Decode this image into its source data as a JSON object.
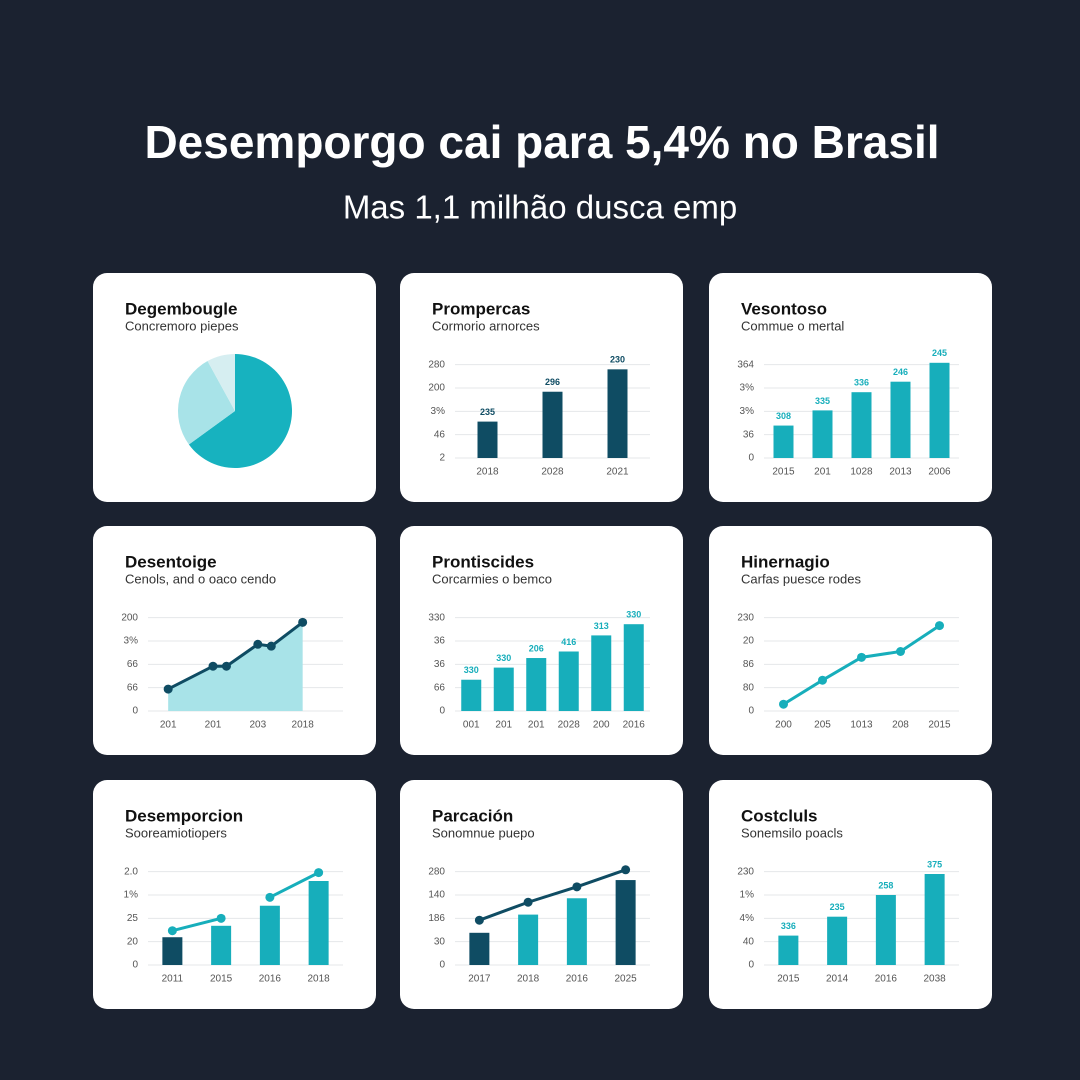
{
  "header": {
    "title": "Desemporgo cai para 5,4% no Brasil",
    "subtitle": "Mas 1,1 milhão dusca emp"
  },
  "chart_data": [
    {
      "type": "pie",
      "title": "Degembougle",
      "subtitle": "Concremoro piepes",
      "values": [
        65,
        27,
        8
      ],
      "colors": [
        "#17b2bf",
        "#a8e3e8",
        "#d6eef1"
      ]
    },
    {
      "type": "bar",
      "title": "Prompercas",
      "subtitle": "Cormorio arnorces",
      "categories": [
        "2018",
        "2028",
        "2021"
      ],
      "series": [
        {
          "kind": "bar",
          "color": "#0f4c63",
          "values": [
            1.56,
            2.84,
            3.8
          ]
        }
      ],
      "annotations": [
        "235",
        "296",
        "230"
      ],
      "ylim": [
        0,
        4.2
      ],
      "yticks": [
        {
          "value": 0,
          "label": "2"
        },
        {
          "value": 1,
          "label": "46"
        },
        {
          "value": 2,
          "label": "3%"
        },
        {
          "value": 3,
          "label": "200"
        },
        {
          "value": 4,
          "label": "280"
        }
      ],
      "grid": true
    },
    {
      "type": "bar",
      "title": "Vesontoso",
      "subtitle": "Commue o mertal",
      "categories": [
        "2015",
        "201",
        "1028",
        "2013",
        "2006"
      ],
      "series": [
        {
          "kind": "bar",
          "color": "#17aebb",
          "values": [
            1.39,
            2.04,
            2.82,
            3.27,
            4.08
          ]
        }
      ],
      "annotations": [
        "308",
        "335",
        "336",
        "246",
        "245"
      ],
      "ylim": [
        0,
        4.2
      ],
      "yticks": [
        0,
        {
          "value": 1,
          "label": "36"
        },
        {
          "value": 2,
          "label": "3%"
        },
        {
          "value": 3,
          "label": "3%"
        },
        {
          "value": 4,
          "label": "364"
        }
      ],
      "grid": true
    },
    {
      "type": "line",
      "title": "Desentoige",
      "subtitle": "Cenols, and o oaco cendo",
      "x": [
        0,
        1,
        1.3,
        2,
        2.3,
        3
      ],
      "series": [
        {
          "kind": "line",
          "area": true,
          "color": "#0f4c63",
          "fill": "#a8e3e8",
          "values": [
            0.94,
            1.92,
            1.92,
            2.86,
            2.78,
            3.8
          ]
        }
      ],
      "xlim": [
        -0.45,
        3.9
      ],
      "xticks": [
        {
          "value": 0,
          "label": "201"
        },
        {
          "value": 1,
          "label": "201"
        },
        {
          "value": 2,
          "label": "203"
        },
        {
          "value": 3,
          "label": "2018"
        }
      ],
      "ylim": [
        0,
        4.2
      ],
      "yticks": [
        0,
        {
          "value": 1,
          "label": "66"
        },
        {
          "value": 2,
          "label": "66"
        },
        {
          "value": 3,
          "label": "3%"
        },
        {
          "value": 4,
          "label": "200"
        }
      ],
      "grid": true
    },
    {
      "type": "bar",
      "title": "Prontiscides",
      "subtitle": "Corcarmies o bemco",
      "categories": [
        "001",
        "201",
        "201",
        "2028",
        "200",
        "2016"
      ],
      "series": [
        {
          "kind": "bar",
          "color": "#17aebb",
          "values": [
            1.34,
            1.86,
            2.27,
            2.55,
            3.24,
            3.72
          ]
        }
      ],
      "annotations": [
        "330",
        "330",
        "206",
        "416",
        "313",
        "330"
      ],
      "ylim": [
        0,
        4.2
      ],
      "yticks": [
        0,
        {
          "value": 1,
          "label": "66"
        },
        {
          "value": 2,
          "label": "36"
        },
        {
          "value": 3,
          "label": "36"
        },
        {
          "value": 4,
          "label": "330"
        }
      ],
      "grid": true
    },
    {
      "type": "line",
      "title": "Hinernagio",
      "subtitle": "Carfas puesce rodes",
      "categories": [
        "200",
        "205",
        "1013",
        "208",
        "2015"
      ],
      "series": [
        {
          "kind": "line",
          "color": "#17aebb",
          "values": [
            0.29,
            1.32,
            2.3,
            2.55,
            3.66
          ]
        }
      ],
      "ylim": [
        0,
        4.2
      ],
      "yticks": [
        0,
        {
          "value": 1,
          "label": "80"
        },
        {
          "value": 2,
          "label": "86"
        },
        {
          "value": 3,
          "label": "20"
        },
        {
          "value": 4,
          "label": "230"
        }
      ],
      "grid": true
    },
    {
      "type": "combo",
      "title": "Desemporcion",
      "subtitle": "Sooreamiotiopers",
      "categories": [
        "2011",
        "2015",
        "2016",
        "2018"
      ],
      "series": [
        {
          "kind": "bar",
          "colors": [
            "#0f4c63",
            "#17aebb",
            "#17aebb",
            "#17aebb"
          ],
          "values": [
            1.19,
            1.68,
            2.54,
            3.6
          ]
        },
        {
          "kind": "line",
          "color": "#17aebb",
          "values": [
            1.47,
            2.0,
            null,
            null
          ]
        },
        {
          "kind": "line",
          "color": "#17aebb",
          "values": [
            null,
            null,
            2.9,
            3.96
          ]
        }
      ],
      "ylim": [
        0,
        4.2
      ],
      "yticks": [
        0,
        {
          "value": 1,
          "label": "20"
        },
        {
          "value": 2,
          "label": "25"
        },
        {
          "value": 3,
          "label": "1%"
        },
        {
          "value": 4,
          "label": "2.0"
        }
      ],
      "grid": true
    },
    {
      "type": "combo",
      "title": "Parcación",
      "subtitle": "Sonomnue puepo",
      "categories": [
        "2017",
        "2018",
        "2016",
        "2025"
      ],
      "series": [
        {
          "kind": "bar",
          "colors": [
            "#0f4c63",
            "#17aebb",
            "#17aebb",
            "#0f4c63"
          ],
          "values": [
            1.38,
            2.16,
            2.86,
            3.64
          ]
        },
        {
          "kind": "line",
          "color": "#0f4c63",
          "values": [
            1.92,
            2.69,
            3.35,
            4.08
          ]
        }
      ],
      "ylim": [
        0,
        4.2
      ],
      "yticks": [
        0,
        {
          "value": 1,
          "label": "30"
        },
        {
          "value": 2,
          "label": "186"
        },
        {
          "value": 3,
          "label": "140"
        },
        {
          "value": 4,
          "label": "280"
        }
      ],
      "grid": true
    },
    {
      "type": "bar",
      "title": "Costcluls",
      "subtitle": "Sonemsilo poacls",
      "categories": [
        "2015",
        "2014",
        "2016",
        "2038"
      ],
      "series": [
        {
          "kind": "bar",
          "color": "#17aebb",
          "values": [
            1.26,
            2.07,
            3.0,
            3.9
          ]
        }
      ],
      "annotations": [
        "336",
        "235",
        "258",
        "375"
      ],
      "ylim": [
        0,
        4.2
      ],
      "yticks": [
        0,
        {
          "value": 1,
          "label": "40"
        },
        {
          "value": 2,
          "label": "4%"
        },
        {
          "value": 3,
          "label": "1%"
        },
        {
          "value": 4,
          "label": "230"
        }
      ],
      "grid": true
    }
  ]
}
